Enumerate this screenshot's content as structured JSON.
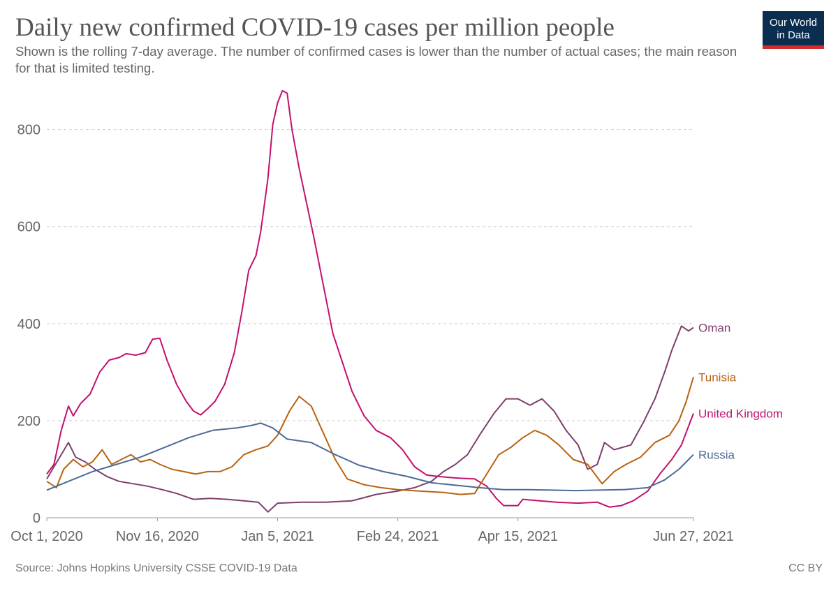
{
  "title": "Daily new confirmed COVID-19 cases per million people",
  "subtitle": "Shown is the rolling 7-day average. The number of confirmed cases is lower than the number of actual cases; the main reason for that is limited testing.",
  "logo": {
    "line1": "Our World",
    "line2": "in Data"
  },
  "footer": {
    "source": "Source: Johns Hopkins University CSSE COVID-19 Data",
    "license": "CC BY"
  },
  "colors": {
    "logo_bg": "#0b2d50",
    "logo_bar": "#d32a2a"
  },
  "chart_data": {
    "type": "line",
    "x_start": "2020-10-01",
    "x_end": "2021-06-27",
    "x_tick_labels": [
      {
        "date": "2020-10-01",
        "label": "Oct 1, 2020"
      },
      {
        "date": "2020-11-16",
        "label": "Nov 16, 2020"
      },
      {
        "date": "2021-01-05",
        "label": "Jan 5, 2021"
      },
      {
        "date": "2021-02-24",
        "label": "Feb 24, 2021"
      },
      {
        "date": "2021-04-15",
        "label": "Apr 15, 2021"
      },
      {
        "date": "2021-06-27",
        "label": "Jun 27, 2021"
      }
    ],
    "y_ticks": [
      0,
      200,
      400,
      600,
      800
    ],
    "ylim": [
      0,
      880
    ],
    "grid": "horizontal dashed",
    "legend": "inline labels at line ends",
    "series": [
      {
        "name": "United Kingdom",
        "color": "#c3106f",
        "points": [
          [
            "2020-10-01",
            90
          ],
          [
            "2020-10-04",
            110
          ],
          [
            "2020-10-07",
            180
          ],
          [
            "2020-10-10",
            230
          ],
          [
            "2020-10-12",
            210
          ],
          [
            "2020-10-15",
            235
          ],
          [
            "2020-10-19",
            255
          ],
          [
            "2020-10-23",
            300
          ],
          [
            "2020-10-27",
            325
          ],
          [
            "2020-10-31",
            330
          ],
          [
            "2020-11-03",
            338
          ],
          [
            "2020-11-07",
            335
          ],
          [
            "2020-11-11",
            340
          ],
          [
            "2020-11-14",
            368
          ],
          [
            "2020-11-17",
            370
          ],
          [
            "2020-11-20",
            325
          ],
          [
            "2020-11-24",
            275
          ],
          [
            "2020-11-28",
            240
          ],
          [
            "2020-12-01",
            220
          ],
          [
            "2020-12-04",
            212
          ],
          [
            "2020-12-07",
            225
          ],
          [
            "2020-12-10",
            240
          ],
          [
            "2020-12-14",
            275
          ],
          [
            "2020-12-18",
            340
          ],
          [
            "2020-12-21",
            420
          ],
          [
            "2020-12-24",
            510
          ],
          [
            "2020-12-27",
            540
          ],
          [
            "2020-12-29",
            590
          ],
          [
            "2021-01-01",
            700
          ],
          [
            "2021-01-03",
            810
          ],
          [
            "2021-01-05",
            855
          ],
          [
            "2021-01-07",
            880
          ],
          [
            "2021-01-09",
            875
          ],
          [
            "2021-01-11",
            800
          ],
          [
            "2021-01-14",
            720
          ],
          [
            "2021-01-17",
            650
          ],
          [
            "2021-01-20",
            580
          ],
          [
            "2021-01-24",
            480
          ],
          [
            "2021-01-28",
            380
          ],
          [
            "2021-02-01",
            320
          ],
          [
            "2021-02-05",
            260
          ],
          [
            "2021-02-10",
            210
          ],
          [
            "2021-02-15",
            180
          ],
          [
            "2021-02-21",
            165
          ],
          [
            "2021-02-26",
            140
          ],
          [
            "2021-03-03",
            105
          ],
          [
            "2021-03-08",
            88
          ],
          [
            "2021-03-13",
            85
          ],
          [
            "2021-03-20",
            82
          ],
          [
            "2021-03-28",
            80
          ],
          [
            "2021-04-02",
            65
          ],
          [
            "2021-04-06",
            40
          ],
          [
            "2021-04-09",
            25
          ],
          [
            "2021-04-15",
            25
          ],
          [
            "2021-04-17",
            38
          ],
          [
            "2021-04-24",
            35
          ],
          [
            "2021-05-01",
            32
          ],
          [
            "2021-05-10",
            30
          ],
          [
            "2021-05-18",
            32
          ],
          [
            "2021-05-23",
            22
          ],
          [
            "2021-05-28",
            25
          ],
          [
            "2021-06-02",
            35
          ],
          [
            "2021-06-08",
            55
          ],
          [
            "2021-06-13",
            90
          ],
          [
            "2021-06-18",
            120
          ],
          [
            "2021-06-22",
            150
          ],
          [
            "2021-06-27",
            215
          ]
        ]
      },
      {
        "name": "Oman",
        "color": "#7d3e6d",
        "points": [
          [
            "2020-10-01",
            80
          ],
          [
            "2020-10-04",
            105
          ],
          [
            "2020-10-07",
            130
          ],
          [
            "2020-10-10",
            155
          ],
          [
            "2020-10-13",
            125
          ],
          [
            "2020-10-17",
            115
          ],
          [
            "2020-10-21",
            100
          ],
          [
            "2020-10-26",
            85
          ],
          [
            "2020-10-31",
            75
          ],
          [
            "2020-11-06",
            70
          ],
          [
            "2020-11-12",
            65
          ],
          [
            "2020-11-18",
            58
          ],
          [
            "2020-11-24",
            50
          ],
          [
            "2020-12-01",
            38
          ],
          [
            "2020-12-08",
            40
          ],
          [
            "2020-12-15",
            38
          ],
          [
            "2020-12-22",
            35
          ],
          [
            "2020-12-28",
            32
          ],
          [
            "2021-01-01",
            12
          ],
          [
            "2021-01-05",
            30
          ],
          [
            "2021-01-15",
            32
          ],
          [
            "2021-01-25",
            32
          ],
          [
            "2021-02-05",
            35
          ],
          [
            "2021-02-15",
            48
          ],
          [
            "2021-02-24",
            55
          ],
          [
            "2021-03-03",
            62
          ],
          [
            "2021-03-10",
            75
          ],
          [
            "2021-03-15",
            95
          ],
          [
            "2021-03-20",
            110
          ],
          [
            "2021-03-25",
            130
          ],
          [
            "2021-03-30",
            170
          ],
          [
            "2021-04-05",
            215
          ],
          [
            "2021-04-10",
            245
          ],
          [
            "2021-04-15",
            245
          ],
          [
            "2021-04-20",
            232
          ],
          [
            "2021-04-25",
            245
          ],
          [
            "2021-04-30",
            220
          ],
          [
            "2021-05-05",
            180
          ],
          [
            "2021-05-10",
            150
          ],
          [
            "2021-05-14",
            100
          ],
          [
            "2021-05-18",
            110
          ],
          [
            "2021-05-21",
            155
          ],
          [
            "2021-05-25",
            140
          ],
          [
            "2021-06-01",
            150
          ],
          [
            "2021-06-06",
            195
          ],
          [
            "2021-06-11",
            245
          ],
          [
            "2021-06-15",
            300
          ],
          [
            "2021-06-18",
            345
          ],
          [
            "2021-06-22",
            395
          ],
          [
            "2021-06-25",
            385
          ],
          [
            "2021-06-27",
            392
          ]
        ]
      },
      {
        "name": "Tunisia",
        "color": "#b8620f",
        "points": [
          [
            "2020-10-01",
            75
          ],
          [
            "2020-10-05",
            62
          ],
          [
            "2020-10-08",
            100
          ],
          [
            "2020-10-12",
            120
          ],
          [
            "2020-10-16",
            105
          ],
          [
            "2020-10-20",
            115
          ],
          [
            "2020-10-24",
            140
          ],
          [
            "2020-10-28",
            110
          ],
          [
            "2020-11-01",
            120
          ],
          [
            "2020-11-05",
            130
          ],
          [
            "2020-11-09",
            115
          ],
          [
            "2020-11-13",
            120
          ],
          [
            "2020-11-17",
            110
          ],
          [
            "2020-11-22",
            100
          ],
          [
            "2020-11-27",
            95
          ],
          [
            "2020-12-02",
            90
          ],
          [
            "2020-12-07",
            95
          ],
          [
            "2020-12-12",
            95
          ],
          [
            "2020-12-17",
            105
          ],
          [
            "2020-12-22",
            130
          ],
          [
            "2020-12-27",
            140
          ],
          [
            "2021-01-01",
            148
          ],
          [
            "2021-01-05",
            170
          ],
          [
            "2021-01-10",
            220
          ],
          [
            "2021-01-14",
            250
          ],
          [
            "2021-01-19",
            230
          ],
          [
            "2021-01-24",
            175
          ],
          [
            "2021-01-29",
            120
          ],
          [
            "2021-02-03",
            80
          ],
          [
            "2021-02-10",
            68
          ],
          [
            "2021-02-17",
            62
          ],
          [
            "2021-02-24",
            58
          ],
          [
            "2021-03-05",
            55
          ],
          [
            "2021-03-15",
            52
          ],
          [
            "2021-03-22",
            48
          ],
          [
            "2021-03-28",
            50
          ],
          [
            "2021-04-02",
            90
          ],
          [
            "2021-04-07",
            130
          ],
          [
            "2021-04-12",
            145
          ],
          [
            "2021-04-17",
            165
          ],
          [
            "2021-04-22",
            180
          ],
          [
            "2021-04-27",
            170
          ],
          [
            "2021-05-02",
            150
          ],
          [
            "2021-05-08",
            120
          ],
          [
            "2021-05-14",
            110
          ],
          [
            "2021-05-20",
            70
          ],
          [
            "2021-05-25",
            95
          ],
          [
            "2021-05-30",
            110
          ],
          [
            "2021-06-05",
            125
          ],
          [
            "2021-06-11",
            155
          ],
          [
            "2021-06-17",
            170
          ],
          [
            "2021-06-21",
            200
          ],
          [
            "2021-06-24",
            240
          ],
          [
            "2021-06-27",
            290
          ]
        ]
      },
      {
        "name": "Russia",
        "color": "#4b6a95",
        "points": [
          [
            "2020-10-01",
            57
          ],
          [
            "2020-10-10",
            75
          ],
          [
            "2020-10-20",
            95
          ],
          [
            "2020-10-30",
            110
          ],
          [
            "2020-11-09",
            125
          ],
          [
            "2020-11-19",
            145
          ],
          [
            "2020-11-29",
            165
          ],
          [
            "2020-12-09",
            180
          ],
          [
            "2020-12-19",
            185
          ],
          [
            "2020-12-25",
            190
          ],
          [
            "2020-12-29",
            195
          ],
          [
            "2021-01-03",
            185
          ],
          [
            "2021-01-09",
            162
          ],
          [
            "2021-01-19",
            155
          ],
          [
            "2021-01-29",
            130
          ],
          [
            "2021-02-08",
            108
          ],
          [
            "2021-02-18",
            95
          ],
          [
            "2021-02-28",
            85
          ],
          [
            "2021-03-10",
            72
          ],
          [
            "2021-03-20",
            67
          ],
          [
            "2021-03-30",
            62
          ],
          [
            "2021-04-09",
            58
          ],
          [
            "2021-04-19",
            58
          ],
          [
            "2021-04-29",
            57
          ],
          [
            "2021-05-09",
            56
          ],
          [
            "2021-05-19",
            57
          ],
          [
            "2021-05-29",
            58
          ],
          [
            "2021-06-08",
            62
          ],
          [
            "2021-06-15",
            78
          ],
          [
            "2021-06-21",
            100
          ],
          [
            "2021-06-27",
            130
          ]
        ]
      }
    ]
  }
}
